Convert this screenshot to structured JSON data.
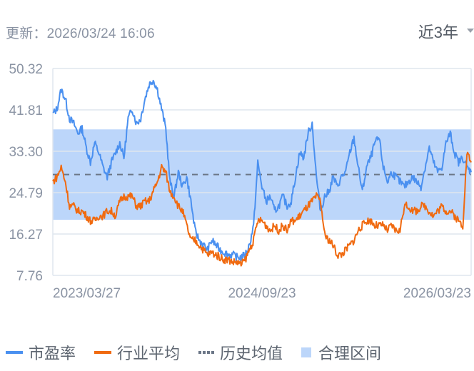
{
  "header": {
    "update_label": "更新：2026/03/24 16:06",
    "range_selector": "近3年"
  },
  "legend": {
    "items": [
      {
        "label": "市盈率",
        "color": "#4a90f0",
        "type": "line"
      },
      {
        "label": "行业平均",
        "color": "#f06a10",
        "type": "line"
      },
      {
        "label": "历史均值",
        "color": "#6b7687",
        "type": "dotted"
      },
      {
        "label": "合理区间",
        "color": "#bcd6fa",
        "type": "box"
      }
    ]
  },
  "chart_data": {
    "type": "line",
    "title": "",
    "xlabel": "",
    "ylabel": "",
    "ylim": [
      7.76,
      50.32
    ],
    "y_ticks": [
      "50.32",
      "41.81",
      "33.30",
      "24.79",
      "16.27",
      "7.76"
    ],
    "x_ticks": [
      "2023/03/27",
      "2024/09/23",
      "2026/03/23"
    ],
    "grid": true,
    "legend_position": "bottom",
    "reasonable_range": [
      19.2,
      37.8
    ],
    "historical_mean": 28.5,
    "series": [
      {
        "name": "市盈率",
        "color": "#4a90f0",
        "x": [
          0,
          0.01,
          0.02,
          0.03,
          0.04,
          0.05,
          0.06,
          0.07,
          0.08,
          0.09,
          0.1,
          0.11,
          0.12,
          0.13,
          0.14,
          0.15,
          0.16,
          0.17,
          0.18,
          0.19,
          0.2,
          0.21,
          0.22,
          0.23,
          0.24,
          0.25,
          0.26,
          0.27,
          0.28,
          0.29,
          0.3,
          0.31,
          0.32,
          0.33,
          0.34,
          0.35,
          0.36,
          0.37,
          0.38,
          0.39,
          0.4,
          0.41,
          0.42,
          0.43,
          0.44,
          0.45,
          0.46,
          0.47,
          0.48,
          0.49,
          0.5,
          0.51,
          0.52,
          0.53,
          0.54,
          0.55,
          0.56,
          0.57,
          0.58,
          0.59,
          0.6,
          0.61,
          0.62,
          0.63,
          0.64,
          0.65,
          0.66,
          0.67,
          0.68,
          0.69,
          0.7,
          0.71,
          0.72,
          0.73,
          0.74,
          0.75,
          0.76,
          0.77,
          0.78,
          0.79,
          0.8,
          0.81,
          0.82,
          0.83,
          0.84,
          0.85,
          0.86,
          0.87,
          0.88,
          0.89,
          0.9,
          0.91,
          0.92,
          0.93,
          0.94,
          0.95,
          0.96,
          0.97,
          0.98,
          0.99,
          1.0
        ],
        "values": [
          41,
          42,
          46,
          44,
          40,
          39,
          37,
          38,
          34,
          31,
          35,
          33,
          30,
          28,
          31,
          33,
          35,
          32,
          40,
          42,
          39,
          40,
          44,
          47,
          48,
          46,
          42,
          38,
          27,
          24,
          29,
          26,
          28,
          23,
          17,
          15,
          14,
          13,
          15,
          14,
          13,
          12.5,
          12,
          12,
          11.5,
          11.5,
          12,
          14,
          18,
          31,
          26,
          23,
          24,
          21,
          22,
          24,
          22,
          23,
          28,
          33,
          32,
          37,
          39,
          28,
          21,
          24,
          25,
          28,
          26,
          28,
          29,
          33,
          36,
          30,
          25,
          30,
          32,
          35,
          36,
          30,
          27,
          29,
          28,
          27,
          26,
          27,
          28,
          27,
          26,
          30,
          34,
          31,
          29,
          30,
          35,
          37,
          33,
          31,
          32,
          30,
          29
        ]
      },
      {
        "name": "行业平均",
        "color": "#f06a10",
        "x": [
          0,
          0.01,
          0.02,
          0.03,
          0.04,
          0.05,
          0.06,
          0.07,
          0.08,
          0.09,
          0.1,
          0.11,
          0.12,
          0.13,
          0.14,
          0.15,
          0.16,
          0.17,
          0.18,
          0.19,
          0.2,
          0.21,
          0.22,
          0.23,
          0.24,
          0.25,
          0.26,
          0.27,
          0.28,
          0.29,
          0.3,
          0.31,
          0.32,
          0.33,
          0.34,
          0.35,
          0.36,
          0.37,
          0.38,
          0.39,
          0.4,
          0.41,
          0.42,
          0.43,
          0.44,
          0.45,
          0.46,
          0.47,
          0.48,
          0.49,
          0.5,
          0.51,
          0.52,
          0.53,
          0.54,
          0.55,
          0.56,
          0.57,
          0.58,
          0.59,
          0.6,
          0.61,
          0.62,
          0.63,
          0.64,
          0.65,
          0.66,
          0.67,
          0.68,
          0.69,
          0.7,
          0.71,
          0.72,
          0.73,
          0.74,
          0.75,
          0.76,
          0.77,
          0.78,
          0.79,
          0.8,
          0.81,
          0.82,
          0.83,
          0.84,
          0.85,
          0.86,
          0.87,
          0.88,
          0.89,
          0.9,
          0.91,
          0.92,
          0.93,
          0.94,
          0.95,
          0.96,
          0.97,
          0.98,
          0.99,
          1.0
        ],
        "values": [
          27,
          28,
          30,
          27,
          22,
          22,
          21,
          21,
          20,
          19,
          19,
          20,
          20,
          21,
          21,
          20,
          23,
          24,
          24,
          24,
          22,
          22,
          23,
          23,
          25,
          27,
          30,
          29,
          25,
          24,
          22,
          21,
          18,
          15,
          15,
          14,
          13,
          12,
          12.5,
          12,
          11.5,
          11,
          11,
          10.5,
          10.5,
          10,
          11,
          13,
          15,
          19,
          19,
          18,
          17,
          18,
          17,
          18,
          17,
          19,
          19,
          20,
          21,
          22,
          23,
          24,
          23,
          16,
          15,
          14,
          12,
          12,
          13,
          14,
          15,
          17,
          18,
          19,
          19,
          18,
          18,
          18,
          17,
          18,
          17,
          17,
          22,
          22,
          21,
          21,
          22,
          22,
          21,
          20,
          21,
          22,
          21,
          21,
          20,
          19,
          18,
          33,
          31
        ]
      }
    ]
  }
}
